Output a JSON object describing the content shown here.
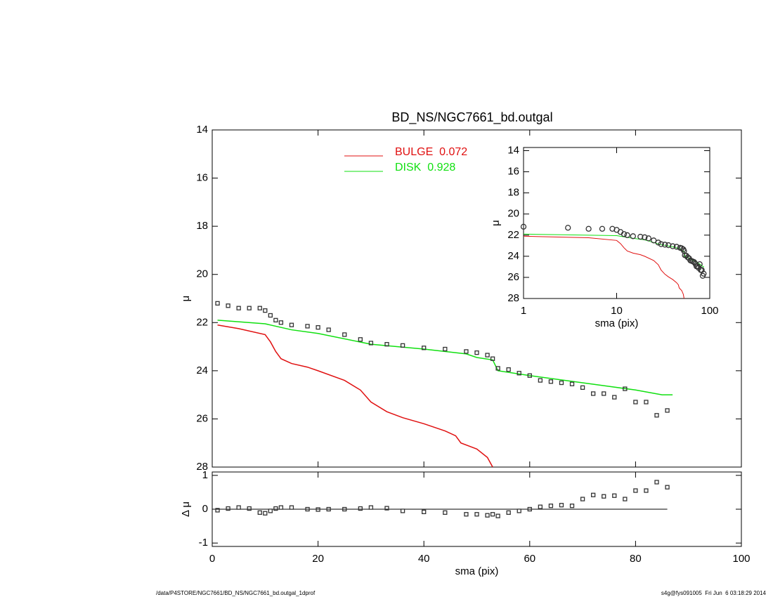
{
  "chart_data": [
    {
      "type": "scatter",
      "title": "BD_NS/NGC7661_bd.outgal",
      "ylabel": "μ",
      "xlim": [
        0,
        100
      ],
      "xticks": [
        0,
        20,
        40,
        60,
        80,
        100
      ],
      "ylim": [
        28,
        14
      ],
      "yticks": [
        14,
        16,
        18,
        20,
        22,
        24,
        26,
        28
      ],
      "legend": "top",
      "x": [
        1,
        3,
        5,
        7,
        9,
        10,
        11,
        12,
        13,
        15,
        18,
        20,
        22,
        25,
        28,
        30,
        33,
        36,
        40,
        44,
        48,
        50,
        52,
        53,
        54,
        56,
        58,
        60,
        62,
        64,
        66,
        68,
        70,
        72,
        74,
        76,
        78,
        80,
        82,
        84,
        86
      ],
      "values": [
        21.2,
        21.3,
        21.4,
        21.4,
        21.4,
        21.5,
        21.7,
        21.9,
        22.0,
        22.1,
        22.15,
        22.2,
        22.3,
        22.5,
        22.7,
        22.85,
        22.9,
        22.95,
        23.05,
        23.1,
        23.2,
        23.25,
        23.35,
        23.5,
        23.9,
        23.95,
        24.1,
        24.2,
        24.4,
        24.45,
        24.5,
        24.55,
        24.7,
        24.95,
        24.95,
        25.1,
        24.75,
        25.3,
        25.3,
        25.85,
        25.65
      ],
      "color": "#333333",
      "series": [
        {
          "name": "BULGE  0.072",
          "color": "#e01010",
          "x": [
            1,
            5,
            10,
            11,
            12,
            13,
            15,
            18,
            20,
            25,
            28,
            30,
            33,
            36,
            40,
            44,
            46,
            47,
            50,
            52,
            53
          ],
          "values": [
            22.1,
            22.25,
            22.5,
            22.8,
            23.2,
            23.5,
            23.7,
            23.85,
            24.0,
            24.4,
            24.8,
            25.3,
            25.7,
            25.95,
            26.2,
            26.5,
            26.7,
            27.0,
            27.25,
            27.6,
            28.0
          ]
        },
        {
          "name": "DISK  0.928",
          "color": "#10e010",
          "x": [
            1,
            10,
            15,
            20,
            30,
            40,
            48,
            50,
            53,
            54,
            60,
            70,
            75,
            80,
            85,
            87
          ],
          "values": [
            21.9,
            22.05,
            22.3,
            22.45,
            22.9,
            23.1,
            23.3,
            23.45,
            23.55,
            24.0,
            24.2,
            24.5,
            24.65,
            24.8,
            25.0,
            25.0
          ]
        }
      ]
    },
    {
      "type": "scatter",
      "xlabel": "sma (pix)",
      "ylabel": "Δ μ",
      "xlim": [
        0,
        100
      ],
      "xticks": [
        0,
        20,
        40,
        60,
        80,
        100
      ],
      "ylim": [
        -1.1,
        1.1
      ],
      "yticks": [
        -1,
        0,
        1
      ],
      "color": "#333333",
      "x": [
        1,
        3,
        5,
        7,
        9,
        10,
        11,
        12,
        13,
        15,
        18,
        20,
        22,
        25,
        28,
        30,
        33,
        36,
        40,
        44,
        48,
        50,
        52,
        53,
        54,
        56,
        58,
        60,
        62,
        64,
        66,
        68,
        70,
        72,
        74,
        76,
        78,
        80,
        82,
        84,
        86
      ],
      "values": [
        -0.03,
        0.02,
        0.05,
        0.02,
        -0.1,
        -0.12,
        -0.05,
        0.02,
        0.05,
        0.05,
        0.0,
        -0.01,
        0.0,
        0.0,
        0.02,
        0.05,
        0.03,
        -0.05,
        -0.08,
        -0.1,
        -0.15,
        -0.15,
        -0.18,
        -0.15,
        -0.2,
        -0.1,
        -0.05,
        0.0,
        0.07,
        0.1,
        0.12,
        0.1,
        0.3,
        0.42,
        0.38,
        0.4,
        0.3,
        0.55,
        0.55,
        0.8,
        0.65
      ]
    },
    {
      "type": "inset",
      "xlabel": "sma (pix)",
      "ylabel": "μ",
      "xlog": true,
      "xlim": [
        1,
        100
      ],
      "xticks": [
        1,
        10,
        100
      ],
      "ylim": [
        28,
        13.7
      ],
      "yticks": [
        14,
        16,
        18,
        20,
        22,
        24,
        26,
        28
      ]
    }
  ],
  "footer": {
    "left": "/data/P4STORE/NGC7661/BD_NS/NGC7661_bd.outgal_1dprof",
    "right": "s4g@fys091005  Fri Jun  6 03:18:29 2014"
  }
}
